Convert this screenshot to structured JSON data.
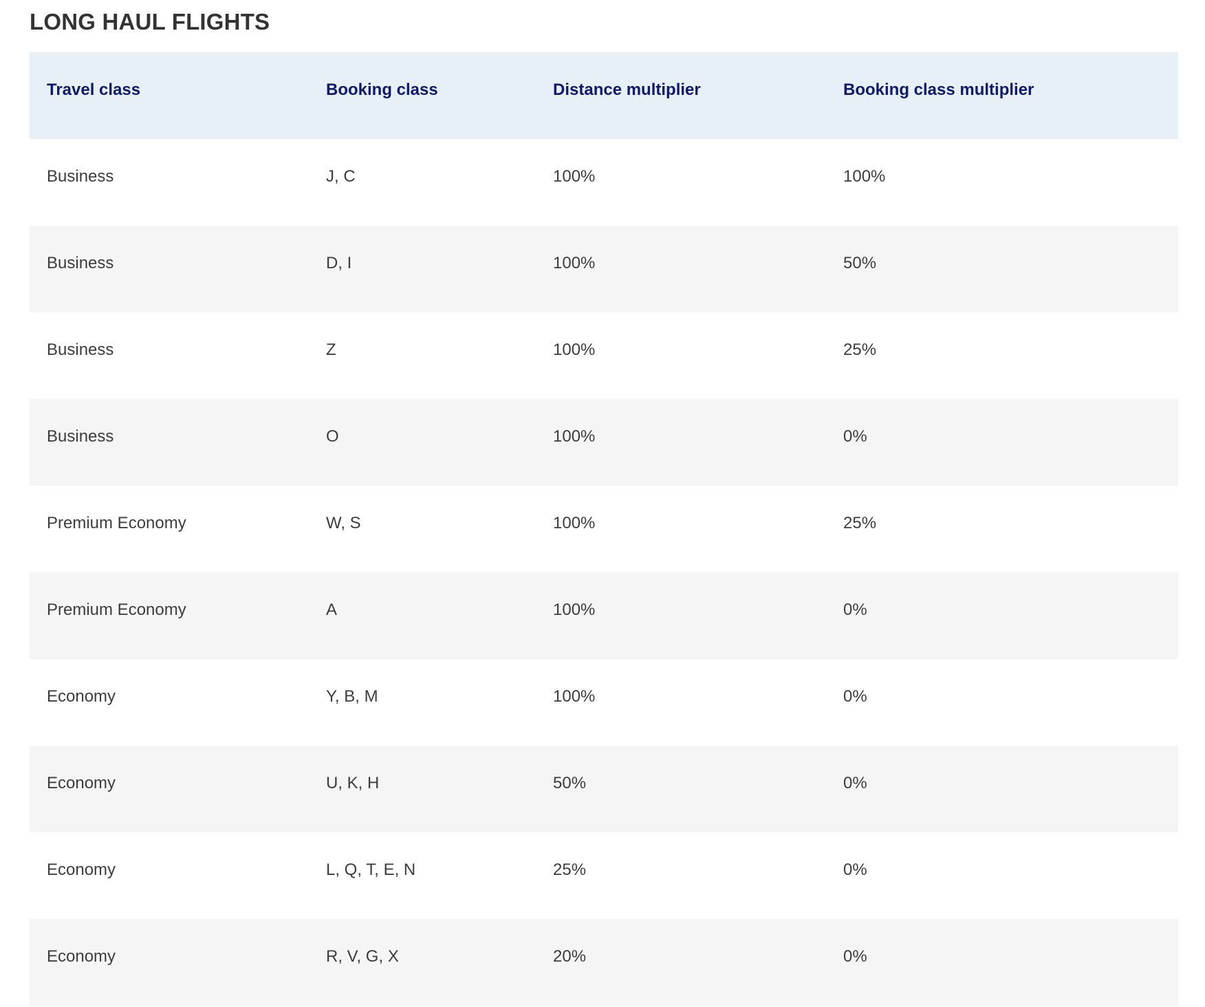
{
  "page": {
    "title": "LONG HAUL FLIGHTS"
  },
  "table": {
    "headers": [
      "Travel class",
      "Booking class",
      "Distance multiplier",
      "Booking class multiplier"
    ],
    "rows": [
      [
        "Business",
        "J, C",
        "100%",
        "100%"
      ],
      [
        "Business",
        "D, I",
        "100%",
        "50%"
      ],
      [
        "Business",
        "Z",
        "100%",
        "25%"
      ],
      [
        "Business",
        "O",
        "100%",
        "0%"
      ],
      [
        "Premium Economy",
        "W, S",
        "100%",
        "25%"
      ],
      [
        "Premium Economy",
        "A",
        "100%",
        "0%"
      ],
      [
        "Economy",
        "Y, B, M",
        "100%",
        "0%"
      ],
      [
        "Economy",
        "U, K, H",
        "50%",
        "0%"
      ],
      [
        "Economy",
        "L, Q, T, E, N",
        "25%",
        "0%"
      ],
      [
        "Economy",
        "R, V, G, X",
        "20%",
        "0%"
      ]
    ]
  },
  "colors": {
    "header_background": "#e7f0f7",
    "header_text": "#0f1a6e",
    "striped_row_background": "#f5f5f5",
    "body_text": "#3d3d3d",
    "title_text": "#333333"
  }
}
